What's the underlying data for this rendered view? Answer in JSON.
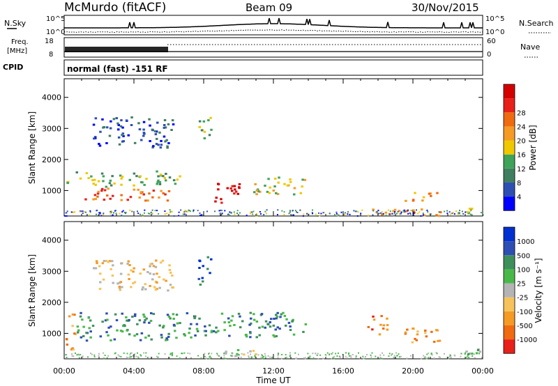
{
  "header": {
    "station": "McMurdo (fitACF)",
    "beam": "Beam 09",
    "date": "30/Nov/2015"
  },
  "top_panels": {
    "nsky_label": "N.Sky",
    "nsearch_label": "N.Search",
    "nsky_ticks": [
      "10^5",
      "10^0"
    ],
    "nsearch_ticks": [
      "10^5",
      "10^0"
    ],
    "freq_label_1": "Freq.",
    "freq_label_2": "[MHz]",
    "freq_ticks": [
      "18",
      "8"
    ],
    "nave_label": "Nave",
    "nave_ticks": [
      "60",
      "0"
    ],
    "cpid_label": "CPID",
    "cpid_text": "normal (fast) -151 RF"
  },
  "colors": {
    "power": [
      "#0000ff",
      "#2d4fb4",
      "#3f7f5f",
      "#3fa35a",
      "#f0c800",
      "#f59a24",
      "#f06a10",
      "#e8201a",
      "#d40000"
    ],
    "velocity": [
      "#e8201a",
      "#f06a10",
      "#f59a24",
      "#f5c35a",
      "#b4b4b4",
      "#49b84a",
      "#3f8f5c",
      "#2d4fb4",
      "#0030d0"
    ]
  },
  "chart_data": [
    {
      "type": "heatmap",
      "title": "Power",
      "xlabel": "Time UT",
      "ylabel": "Slant Range [km]",
      "x_ticks": [
        "00:00",
        "04:00",
        "08:00",
        "12:00",
        "16:00",
        "20:00",
        "00:00"
      ],
      "y_ticks": [
        1000,
        2000,
        3000,
        4000
      ],
      "ylim": [
        180,
        4600
      ],
      "xlim_hours": [
        0,
        24
      ],
      "colorbar": {
        "label": "Power [dB]",
        "ticks": [
          "4",
          "8",
          "12",
          "16",
          "20",
          "24",
          "28"
        ],
        "range": [
          0,
          32
        ]
      },
      "features": [
        {
          "t0": 0.1,
          "t1": 6.6,
          "r0": 1150,
          "r1": 1650,
          "level": 3
        },
        {
          "t0": 0.5,
          "t1": 6.0,
          "r0": 700,
          "r1": 1100,
          "level": 6
        },
        {
          "t0": 8.6,
          "t1": 10.0,
          "r0": 600,
          "r1": 1400,
          "level": 8
        },
        {
          "t0": 10.8,
          "t1": 13.8,
          "r0": 900,
          "r1": 1500,
          "level": 4
        },
        {
          "t0": 7.6,
          "t1": 8.4,
          "r0": 2600,
          "r1": 3400,
          "level": 3
        },
        {
          "t0": 1.6,
          "t1": 6.2,
          "r0": 2400,
          "r1": 3400,
          "level": 1
        },
        {
          "t0": 19.5,
          "t1": 21.5,
          "r0": 700,
          "r1": 1000,
          "level": 5
        },
        {
          "t0": 17.4,
          "t1": 21.8,
          "r0": 200,
          "r1": 450,
          "level": 6
        },
        {
          "t0": 22.4,
          "t1": 23.8,
          "r0": 300,
          "r1": 500,
          "level": 3
        }
      ]
    },
    {
      "type": "heatmap",
      "title": "Velocity",
      "xlabel": "Time UT",
      "ylabel": "Slant Range [km]",
      "x_ticks": [
        "00:00",
        "04:00",
        "08:00",
        "12:00",
        "16:00",
        "20:00",
        "00:00"
      ],
      "y_ticks": [
        1000,
        2000,
        3000,
        4000
      ],
      "ylim": [
        180,
        4600
      ],
      "xlim_hours": [
        0,
        24
      ],
      "colorbar": {
        "label": "Velocity [m s⁻¹]",
        "ticks": [
          "-1000",
          "-500",
          "-100",
          "-25",
          "25",
          "100",
          "500",
          "1000"
        ],
        "range": [
          -1000,
          1000
        ]
      },
      "features": [
        {
          "t0": 0.0,
          "t1": 0.6,
          "r0": 500,
          "r1": 1700,
          "level": 2
        },
        {
          "t0": 0.6,
          "t1": 6.6,
          "r0": 800,
          "r1": 1700,
          "level": 6
        },
        {
          "t0": 6.8,
          "t1": 13.8,
          "r0": 900,
          "r1": 1700,
          "level": 6
        },
        {
          "t0": 7.6,
          "t1": 8.4,
          "r0": 2600,
          "r1": 3500,
          "level": 7
        },
        {
          "t0": 1.6,
          "t1": 6.2,
          "r0": 2400,
          "r1": 3400,
          "level": 3
        },
        {
          "t0": 17.3,
          "t1": 18.5,
          "r0": 1000,
          "r1": 1600,
          "level": 1
        },
        {
          "t0": 19.3,
          "t1": 21.6,
          "r0": 700,
          "r1": 1200,
          "level": 2
        },
        {
          "t0": 22.3,
          "t1": 23.9,
          "r0": 250,
          "r1": 550,
          "level": 5
        },
        {
          "t0": 9.0,
          "t1": 11.0,
          "r0": 200,
          "r1": 500,
          "level": 4
        }
      ]
    }
  ]
}
